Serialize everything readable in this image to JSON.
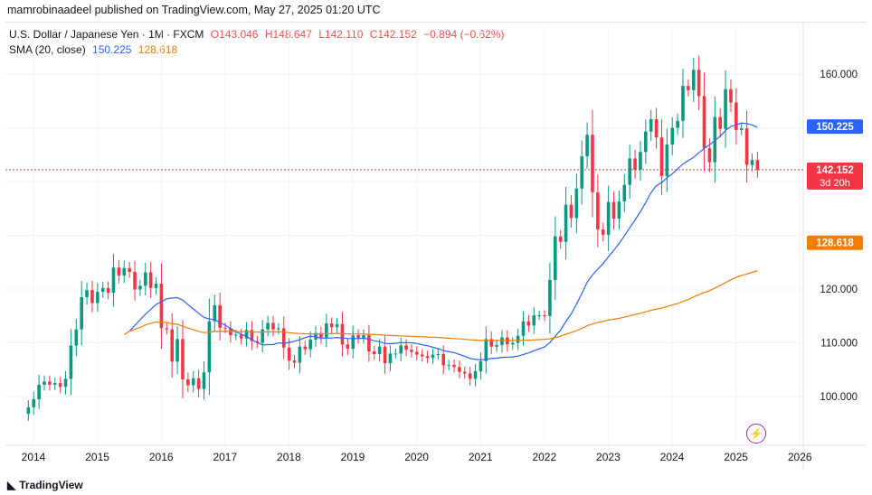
{
  "publisher_line": "mamrobinaadeel published on TradingView.com, May 27, 2025 01:20 UTC",
  "legend": {
    "symbol": "U.S. Dollar / Japanese Yen · 1M · FXCM",
    "open": "O143.046",
    "high": "H148.647",
    "low": "L142.110",
    "close": "C142.152",
    "change": "−0.894 (−0.62%)",
    "sma_label": "SMA (20, close)",
    "sma_value": "150.225",
    "sma2_value": "128.618"
  },
  "price_labels": {
    "last_price": "142.152",
    "countdown": "3d 20h",
    "sma": "150.225",
    "sma2": "128.618"
  },
  "logo_text": "TradingView",
  "colors": {
    "up": "#089981",
    "down": "#f23645",
    "sma": "#2962ff",
    "sma2": "#f57c00",
    "grid": "#f0f3fa",
    "text": "#131722"
  },
  "icons": {
    "flash": "lightning-icon",
    "logo": "tradingview-logo-icon"
  },
  "chart_data": {
    "type": "candlestick",
    "title": "",
    "yaxis_ticks": [
      "100.000",
      "110.000",
      "120.000",
      "160.000"
    ],
    "xaxis_ticks": [
      "2014",
      "2015",
      "2016",
      "2017",
      "2018",
      "2019",
      "2020",
      "2021",
      "2022",
      "2023",
      "2024",
      "2025",
      "2026"
    ],
    "ylim": [
      91.0,
      166.0
    ],
    "xlim": [
      2013.92,
      2026.6
    ],
    "grid": true,
    "candles_close": [
      98.0,
      99.5,
      102.2,
      102.8,
      102.2,
      102.5,
      101.8,
      103.3,
      109.5,
      112.5,
      118.5,
      119.8,
      117.4,
      119.5,
      120.2,
      119.3,
      124.0,
      122.5,
      123.9,
      123.2,
      119.9,
      120.6,
      123.1,
      120.2,
      121.0,
      112.7,
      112.5,
      106.5,
      110.7,
      103.2,
      102.1,
      103.4,
      101.4,
      104.5,
      114.0,
      117.0,
      112.8,
      112.7,
      111.4,
      111.5,
      110.8,
      112.4,
      110.3,
      110.0,
      112.5,
      113.7,
      112.5,
      112.7,
      109.1,
      106.7,
      106.3,
      109.3,
      108.8,
      110.6,
      111.8,
      111.0,
      113.6,
      112.9,
      113.5,
      109.7,
      108.9,
      111.4,
      110.9,
      111.4,
      108.4,
      107.9,
      109.3,
      106.2,
      108.0,
      108.0,
      109.5,
      108.7,
      108.3,
      107.8,
      107.5,
      107.2,
      107.8,
      107.9,
      105.8,
      105.9,
      105.5,
      104.6,
      104.3,
      103.3,
      104.7,
      106.6,
      110.7,
      109.3,
      109.6,
      111.0,
      109.7,
      110.0,
      111.3,
      114.0,
      113.2,
      115.1,
      115.1,
      115.0,
      121.7,
      129.8,
      128.8,
      135.7,
      133.2,
      138.7,
      144.7,
      148.7,
      138.0,
      131.1,
      130.1,
      136.2,
      133.1,
      136.3,
      139.4,
      144.3,
      142.2,
      145.5,
      149.3,
      151.6,
      148.2,
      141.0,
      146.9,
      150.0,
      151.3,
      157.8,
      157.0,
      160.8,
      155.9,
      146.2,
      143.6,
      152.0,
      149.8,
      157.2,
      154.7,
      149.6,
      149.9,
      143.1,
      144.0,
      142.2
    ]
  }
}
